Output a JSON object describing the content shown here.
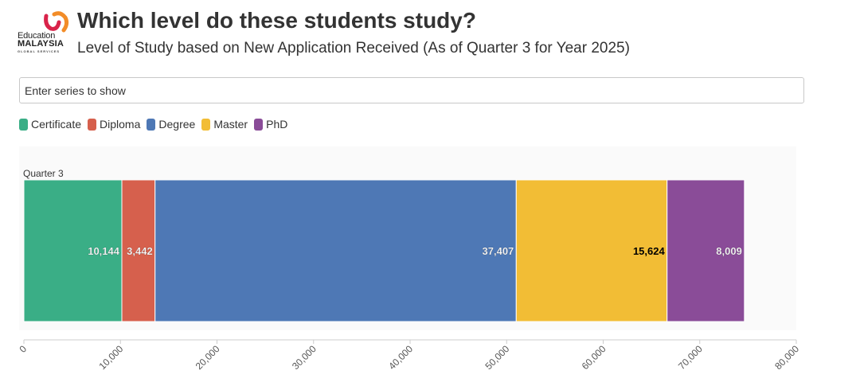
{
  "logo": {
    "line1": "Education",
    "line2": "MALAYSIA",
    "line3": "GLOBAL SERVICES"
  },
  "header": {
    "title": "Which level do these students study?",
    "subtitle": "Level of Study based on New Application Received (As of Quarter 3 for Year 2025)"
  },
  "search": {
    "placeholder": "Enter series to show"
  },
  "colors": {
    "certificate": "#3aae86",
    "diploma": "#d6604d",
    "degree": "#4e78b5",
    "master": "#f2bd35",
    "phd": "#8a4c98",
    "plot_bg": "#fafafa"
  },
  "chart_data": {
    "type": "bar",
    "orientation": "horizontal",
    "stacked": true,
    "categories": [
      "Quarter 3"
    ],
    "series": [
      {
        "name": "Certificate",
        "values": [
          10144
        ],
        "color": "#3aae86",
        "label_color": "#ffffff"
      },
      {
        "name": "Diploma",
        "values": [
          3442
        ],
        "color": "#d6604d",
        "label_color": "#ffffff"
      },
      {
        "name": "Degree",
        "values": [
          37407
        ],
        "color": "#4e78b5",
        "label_color": "#ffffff"
      },
      {
        "name": "Master",
        "values": [
          15624
        ],
        "color": "#f2bd35",
        "label_color": "#000000"
      },
      {
        "name": "PhD",
        "values": [
          8009
        ],
        "color": "#8a4c98",
        "label_color": "#ffffff"
      }
    ],
    "xlim": [
      0,
      80000
    ],
    "xticks": [
      0,
      10000,
      20000,
      30000,
      40000,
      50000,
      60000,
      70000,
      80000
    ],
    "xtick_labels": [
      "0",
      "10,000",
      "20,000",
      "30,000",
      "40,000",
      "50,000",
      "60,000",
      "70,000",
      "80,000"
    ],
    "data_labels": [
      "10,144",
      "3,442",
      "37,407",
      "15,624",
      "8,009"
    ],
    "legend_position": "top-left",
    "grid": false
  }
}
